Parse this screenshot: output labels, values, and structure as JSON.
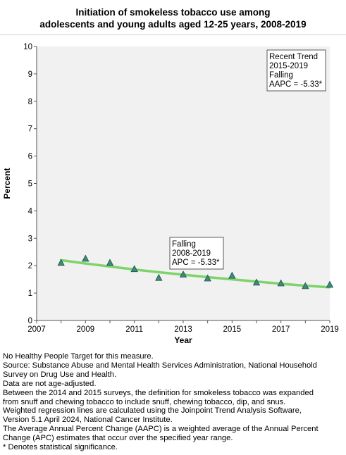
{
  "title": {
    "line1": "Initiation of smokeless tobacco use among",
    "line2": "adolescents and young adults aged 12-25 years, 2008-2019"
  },
  "chart_data": {
    "type": "scatter",
    "title": "Initiation of smokeless tobacco use among adolescents and young adults aged 12-25 years, 2008-2019",
    "xlabel": "Year",
    "ylabel": "Percent",
    "xlim": [
      2007,
      2019
    ],
    "ylim": [
      0,
      10
    ],
    "x_ticks": [
      "2007",
      "2009",
      "2011",
      "2013",
      "2015",
      "2017",
      "2019"
    ],
    "y_ticks": [
      "0",
      "1",
      "2",
      "3",
      "4",
      "5",
      "6",
      "7",
      "8",
      "9",
      "10"
    ],
    "grid": false,
    "series": [
      {
        "marker": "triangle",
        "color": "#3d8a7e",
        "points": [
          {
            "x": 2008,
            "y": 2.1
          },
          {
            "x": 2009,
            "y": 2.25
          },
          {
            "x": 2010,
            "y": 2.1
          },
          {
            "x": 2011,
            "y": 1.87
          },
          {
            "x": 2012,
            "y": 1.55
          },
          {
            "x": 2013,
            "y": 1.67
          },
          {
            "x": 2014,
            "y": 1.53
          },
          {
            "x": 2015,
            "y": 1.63
          },
          {
            "x": 2016,
            "y": 1.38
          },
          {
            "x": 2017,
            "y": 1.35
          },
          {
            "x": 2018,
            "y": 1.25
          },
          {
            "x": 2019,
            "y": 1.3
          }
        ]
      }
    ],
    "trend": {
      "color": "#7ed36a",
      "x": [
        2008,
        2009,
        2010,
        2011,
        2012,
        2013,
        2014,
        2015,
        2016,
        2017,
        2018,
        2019
      ],
      "y": [
        2.2,
        2.08,
        1.97,
        1.86,
        1.76,
        1.67,
        1.58,
        1.5,
        1.42,
        1.34,
        1.27,
        1.21
      ]
    },
    "annotations": {
      "recent": [
        "Recent Trend",
        "2015-2019",
        "Falling",
        "AAPC = -5.33*"
      ],
      "overall": [
        "Falling",
        "2008-2019",
        "APC = -5.33*"
      ]
    }
  },
  "notes": [
    "No Healthy People Target for this measure.",
    "Source: Substance Abuse and Mental Health Services Administration, National Household",
    "Survey on Drug Use and Health.",
    "Data are not age-adjusted.",
    "Between the 2014 and 2015 surveys, the definition for smokeless tobacco was expanded",
    "from snuff and chewing tobacco to include snuff, chewing tobacco, dip, and snus.",
    "Weighted regression lines are calculated using the Joinpoint Trend Analysis Software,",
    "Version 5.1 April 2024, National Cancer Institute.",
    "The Average Annual Percent Change (AAPC) is a weighted average of the Annual Percent",
    "Change (APC) estimates that occur over the specified year range.",
    "* Denotes statistical significance."
  ]
}
